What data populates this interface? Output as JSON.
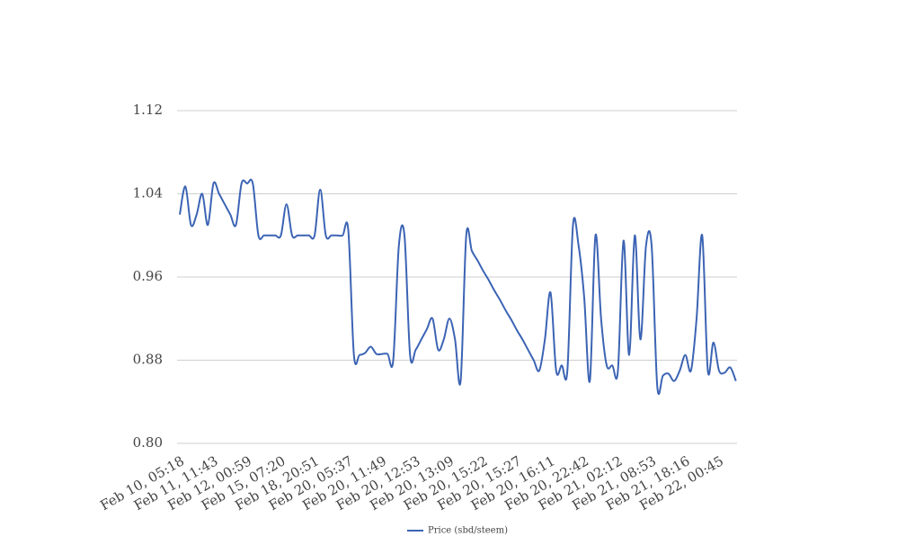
{
  "chart_data": {
    "type": "line",
    "categories": [
      "Feb 10, 05:18",
      null,
      null,
      null,
      null,
      null,
      "Feb 11, 11:43",
      null,
      null,
      null,
      null,
      null,
      "Feb 12, 00:59",
      null,
      null,
      null,
      null,
      null,
      "Feb 15, 07:20",
      null,
      null,
      null,
      null,
      null,
      "Feb 18, 20:51",
      null,
      null,
      null,
      null,
      null,
      "Feb 20, 05:37",
      null,
      null,
      null,
      null,
      null,
      "Feb 20, 11:49",
      null,
      null,
      null,
      null,
      null,
      "Feb 20, 12:53",
      null,
      null,
      null,
      null,
      null,
      "Feb 20, 13:09",
      null,
      null,
      null,
      null,
      null,
      "Feb 20, 15:22",
      null,
      null,
      null,
      null,
      null,
      "Feb 20, 15:27",
      null,
      null,
      null,
      null,
      null,
      "Feb 20, 16:11",
      null,
      null,
      null,
      null,
      null,
      "Feb 20, 22:42",
      null,
      null,
      null,
      null,
      null,
      "Feb 21, 02:12",
      null,
      null,
      null,
      null,
      null,
      "Feb 21, 08:53",
      null,
      null,
      null,
      null,
      null,
      "Feb 21, 18:16",
      null,
      null,
      null,
      null,
      null,
      "Feb 22, 00:45",
      null,
      null,
      null
    ],
    "series": [
      {
        "name": "Price (sbd/steem)",
        "color": "#3c64b4",
        "values": [
          1.02,
          1.047,
          1.01,
          1.02,
          1.04,
          1.01,
          1.05,
          1.04,
          1.03,
          1.02,
          1.01,
          1.05,
          1.05,
          1.05,
          1.0,
          1.0,
          1.0,
          1.0,
          1.0,
          1.03,
          1.0,
          1.0,
          1.0,
          1.0,
          1.0,
          1.044,
          1.0,
          1.0,
          1.0,
          1.0,
          1.005,
          0.885,
          0.885,
          0.887,
          0.893,
          0.886,
          0.886,
          0.886,
          0.88,
          0.99,
          1.0,
          0.885,
          0.89,
          0.9,
          0.91,
          0.92,
          0.89,
          0.9,
          0.92,
          0.9,
          0.86,
          1.0,
          0.985,
          0.976,
          0.966,
          0.957,
          0.947,
          0.938,
          0.928,
          0.919,
          0.909,
          0.9,
          0.89,
          0.88,
          0.87,
          0.9,
          0.945,
          0.87,
          0.875,
          0.87,
          1.01,
          0.99,
          0.94,
          0.86,
          1.0,
          0.92,
          0.875,
          0.875,
          0.87,
          0.995,
          0.885,
          1.0,
          0.9,
          0.99,
          0.99,
          0.855,
          0.865,
          0.867,
          0.86,
          0.87,
          0.885,
          0.87,
          0.92,
          1.0,
          0.87,
          0.897,
          0.87,
          0.868,
          0.873,
          0.86
        ]
      }
    ],
    "ylim": [
      0.8,
      1.12
    ],
    "yticks": [
      {
        "value": 0.8,
        "label": "0.80"
      },
      0.88,
      0.96,
      1.04,
      1.12
    ],
    "grid": true,
    "legend": "bottom"
  }
}
